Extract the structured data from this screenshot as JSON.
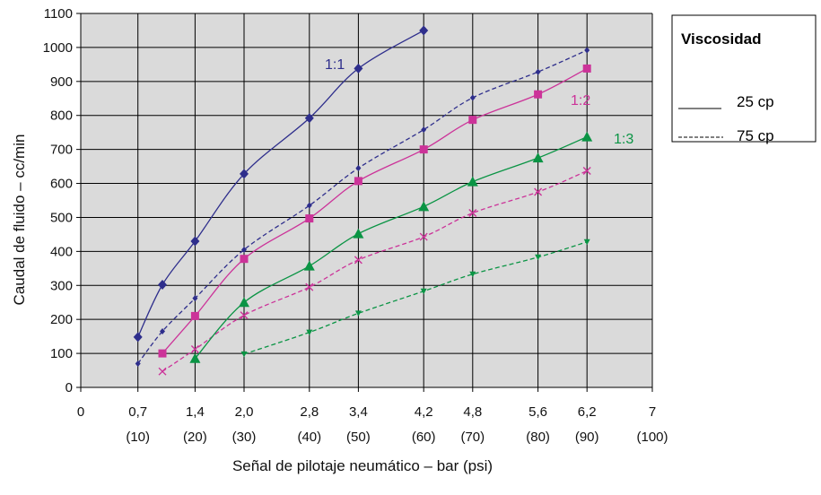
{
  "chart_data": {
    "type": "line",
    "xlabel": "Señal de pilotaje neumático – bar (psi)",
    "ylabel": "Caudal de fluido – cc/min",
    "xlim": [
      0,
      7
    ],
    "ylim": [
      0,
      1100
    ],
    "grid": true,
    "x_ticks": [
      {
        "value": 0,
        "label": "0",
        "sub": ""
      },
      {
        "value": 0.7,
        "label": "0,7",
        "sub": "(10)"
      },
      {
        "value": 1.4,
        "label": "1,4",
        "sub": "(20)"
      },
      {
        "value": 2.0,
        "label": "2,0",
        "sub": "(30)"
      },
      {
        "value": 2.8,
        "label": "2,8",
        "sub": "(40)"
      },
      {
        "value": 3.4,
        "label": "3,4",
        "sub": "(50)"
      },
      {
        "value": 4.2,
        "label": "4,2",
        "sub": "(60)"
      },
      {
        "value": 4.8,
        "label": "4,8",
        "sub": "(70)"
      },
      {
        "value": 5.6,
        "label": "5,6",
        "sub": "(80)"
      },
      {
        "value": 6.2,
        "label": "6,2",
        "sub": "(90)"
      },
      {
        "value": 7,
        "label": "7",
        "sub": "(100)"
      }
    ],
    "y_ticks": [
      "0",
      "100",
      "200",
      "300",
      "400",
      "500",
      "600",
      "700",
      "800",
      "900",
      "1000",
      "1100"
    ],
    "series": [
      {
        "label": "1:1",
        "viscosity": "25 cp",
        "color": "#2e2e8c",
        "marker": "diamond",
        "dashed": false,
        "points": [
          [
            0.7,
            148
          ],
          [
            1.0,
            302
          ],
          [
            1.4,
            430
          ],
          [
            2.0,
            628
          ],
          [
            2.8,
            792
          ],
          [
            3.4,
            938
          ],
          [
            4.2,
            1050
          ]
        ]
      },
      {
        "label": "",
        "viscosity": "75 cp",
        "color": "#2e2e8c",
        "marker": "small-diamond",
        "dashed": true,
        "points": [
          [
            0.7,
            70
          ],
          [
            1.0,
            165
          ],
          [
            1.4,
            262
          ],
          [
            2.0,
            405
          ],
          [
            2.8,
            535
          ],
          [
            3.4,
            645
          ],
          [
            4.2,
            758
          ],
          [
            4.8,
            852
          ],
          [
            5.6,
            928
          ],
          [
            6.2,
            992
          ]
        ]
      },
      {
        "label": "1:2",
        "viscosity": "25 cp",
        "color": "#cc3399",
        "marker": "square",
        "dashed": false,
        "points": [
          [
            1.0,
            100
          ],
          [
            1.4,
            210
          ],
          [
            2.0,
            378
          ],
          [
            2.8,
            497
          ],
          [
            3.4,
            607
          ],
          [
            4.2,
            700
          ],
          [
            4.8,
            787
          ],
          [
            5.6,
            862
          ],
          [
            6.2,
            938
          ]
        ]
      },
      {
        "label": "",
        "viscosity": "75 cp",
        "color": "#cc3399",
        "marker": "x",
        "dashed": true,
        "points": [
          [
            1.0,
            47
          ],
          [
            1.4,
            112
          ],
          [
            2.0,
            212
          ],
          [
            2.8,
            295
          ],
          [
            3.4,
            375
          ],
          [
            4.2,
            443
          ],
          [
            4.8,
            513
          ],
          [
            5.6,
            575
          ],
          [
            6.2,
            637
          ]
        ]
      },
      {
        "label": "1:3",
        "viscosity": "25 cp",
        "color": "#0a9444",
        "marker": "triangle",
        "dashed": false,
        "points": [
          [
            1.4,
            85
          ],
          [
            2.0,
            250
          ],
          [
            2.8,
            357
          ],
          [
            3.4,
            452
          ],
          [
            4.2,
            532
          ],
          [
            4.8,
            605
          ],
          [
            5.6,
            675
          ],
          [
            6.2,
            737
          ]
        ]
      },
      {
        "label": "",
        "viscosity": "75 cp",
        "color": "#0a9444",
        "marker": "down-triangle",
        "dashed": true,
        "points": [
          [
            2.0,
            98
          ],
          [
            2.8,
            162
          ],
          [
            3.4,
            218
          ],
          [
            4.2,
            283
          ],
          [
            4.8,
            333
          ],
          [
            5.6,
            383
          ],
          [
            6.2,
            428
          ]
        ]
      }
    ],
    "legend": {
      "title": "Viscosidad",
      "position": "top-right",
      "entries": [
        {
          "style": "solid",
          "label": "25 cp"
        },
        {
          "style": "dashed",
          "label": "75 cp"
        }
      ]
    }
  }
}
